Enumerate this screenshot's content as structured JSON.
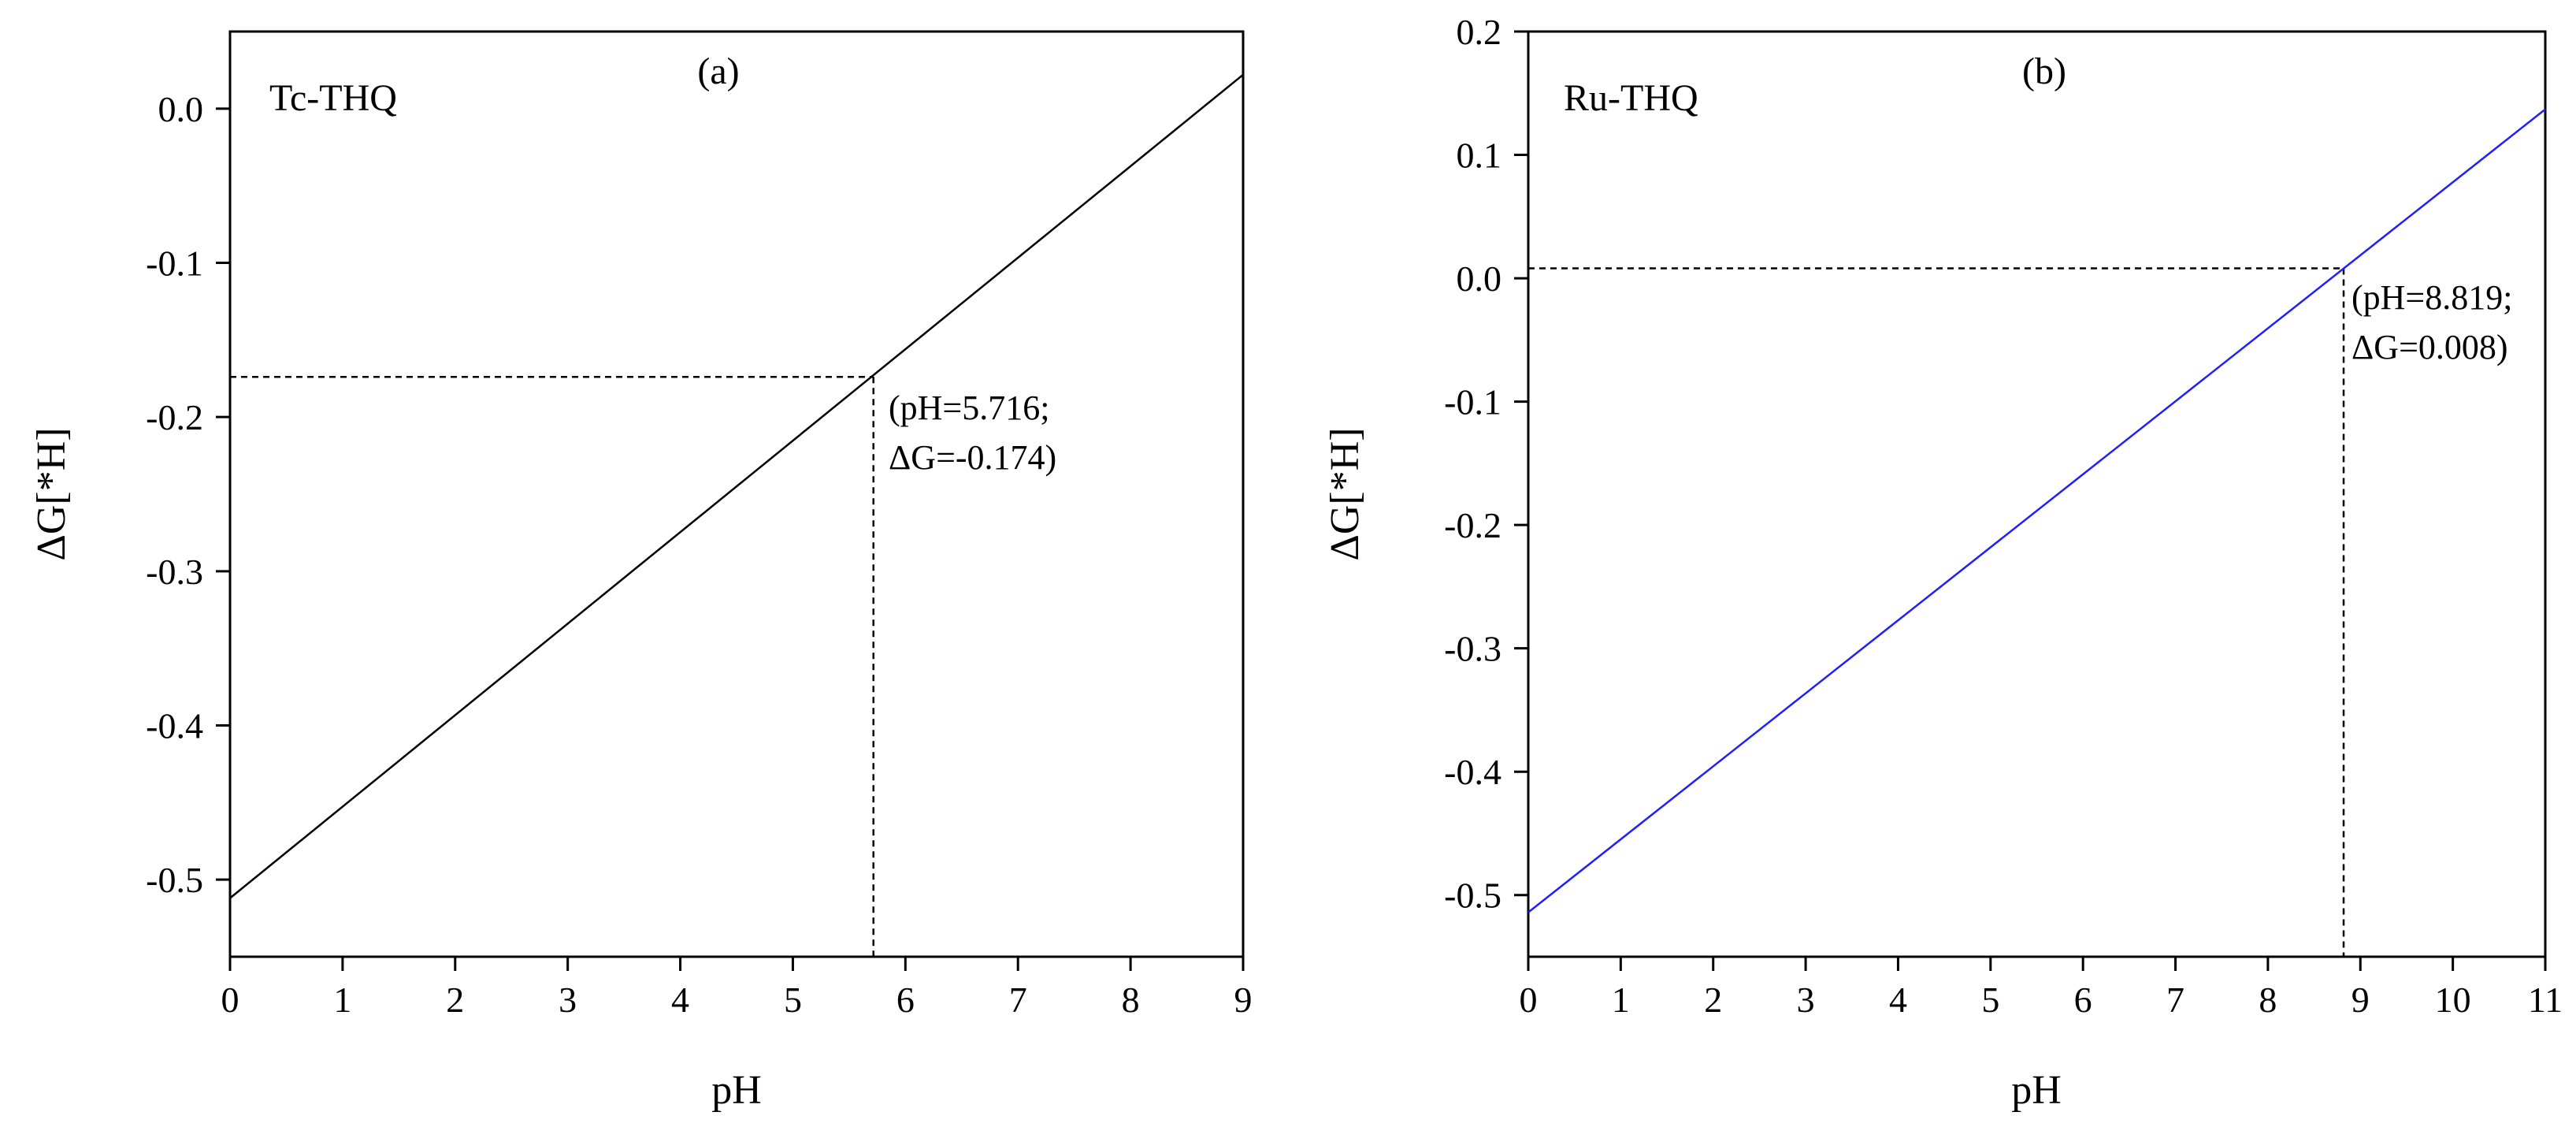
{
  "chart_data": [
    {
      "type": "line",
      "panel_label": "(a)",
      "series_label": "Tc-THQ",
      "xlabel": "pH",
      "ylabel": "ΔG[*H]",
      "xlim": [
        0,
        9
      ],
      "ylim": [
        -0.55,
        0.05
      ],
      "xticks": [
        0,
        1,
        2,
        3,
        4,
        5,
        6,
        7,
        8,
        9
      ],
      "yticks": [
        -0.5,
        -0.4,
        -0.3,
        -0.2,
        -0.1,
        0.0
      ],
      "ytick_labels": [
        "-0.5",
        "-0.4",
        "-0.3",
        "-0.2",
        "-0.1",
        "0.0"
      ],
      "line_color": "#000000",
      "series": [
        {
          "name": "Tc-THQ",
          "x": [
            0,
            9
          ],
          "y": [
            -0.512,
            0.022
          ]
        }
      ],
      "marker_point": {
        "x": 5.716,
        "y": -0.174
      },
      "annotation": [
        "(pH=5.716;",
        "ΔG=-0.174)"
      ]
    },
    {
      "type": "line",
      "panel_label": "(b)",
      "series_label": "Ru-THQ",
      "xlabel": "pH",
      "ylabel": "ΔG[*H]",
      "xlim": [
        0,
        11
      ],
      "ylim": [
        -0.55,
        0.2
      ],
      "xticks": [
        0,
        1,
        2,
        3,
        4,
        5,
        6,
        7,
        8,
        9,
        10,
        11
      ],
      "yticks": [
        -0.5,
        -0.4,
        -0.3,
        -0.2,
        -0.1,
        0.0,
        0.1,
        0.2
      ],
      "ytick_labels": [
        "-0.5",
        "-0.4",
        "-0.3",
        "-0.2",
        "-0.1",
        "0.0",
        "0.1",
        "0.2"
      ],
      "line_color": "#1f1fff",
      "series": [
        {
          "name": "Ru-THQ",
          "x": [
            0,
            11
          ],
          "y": [
            -0.514,
            0.137
          ]
        }
      ],
      "marker_point": {
        "x": 8.819,
        "y": 0.008
      },
      "annotation": [
        "(pH=8.819;",
        "ΔG=0.008)"
      ]
    }
  ]
}
